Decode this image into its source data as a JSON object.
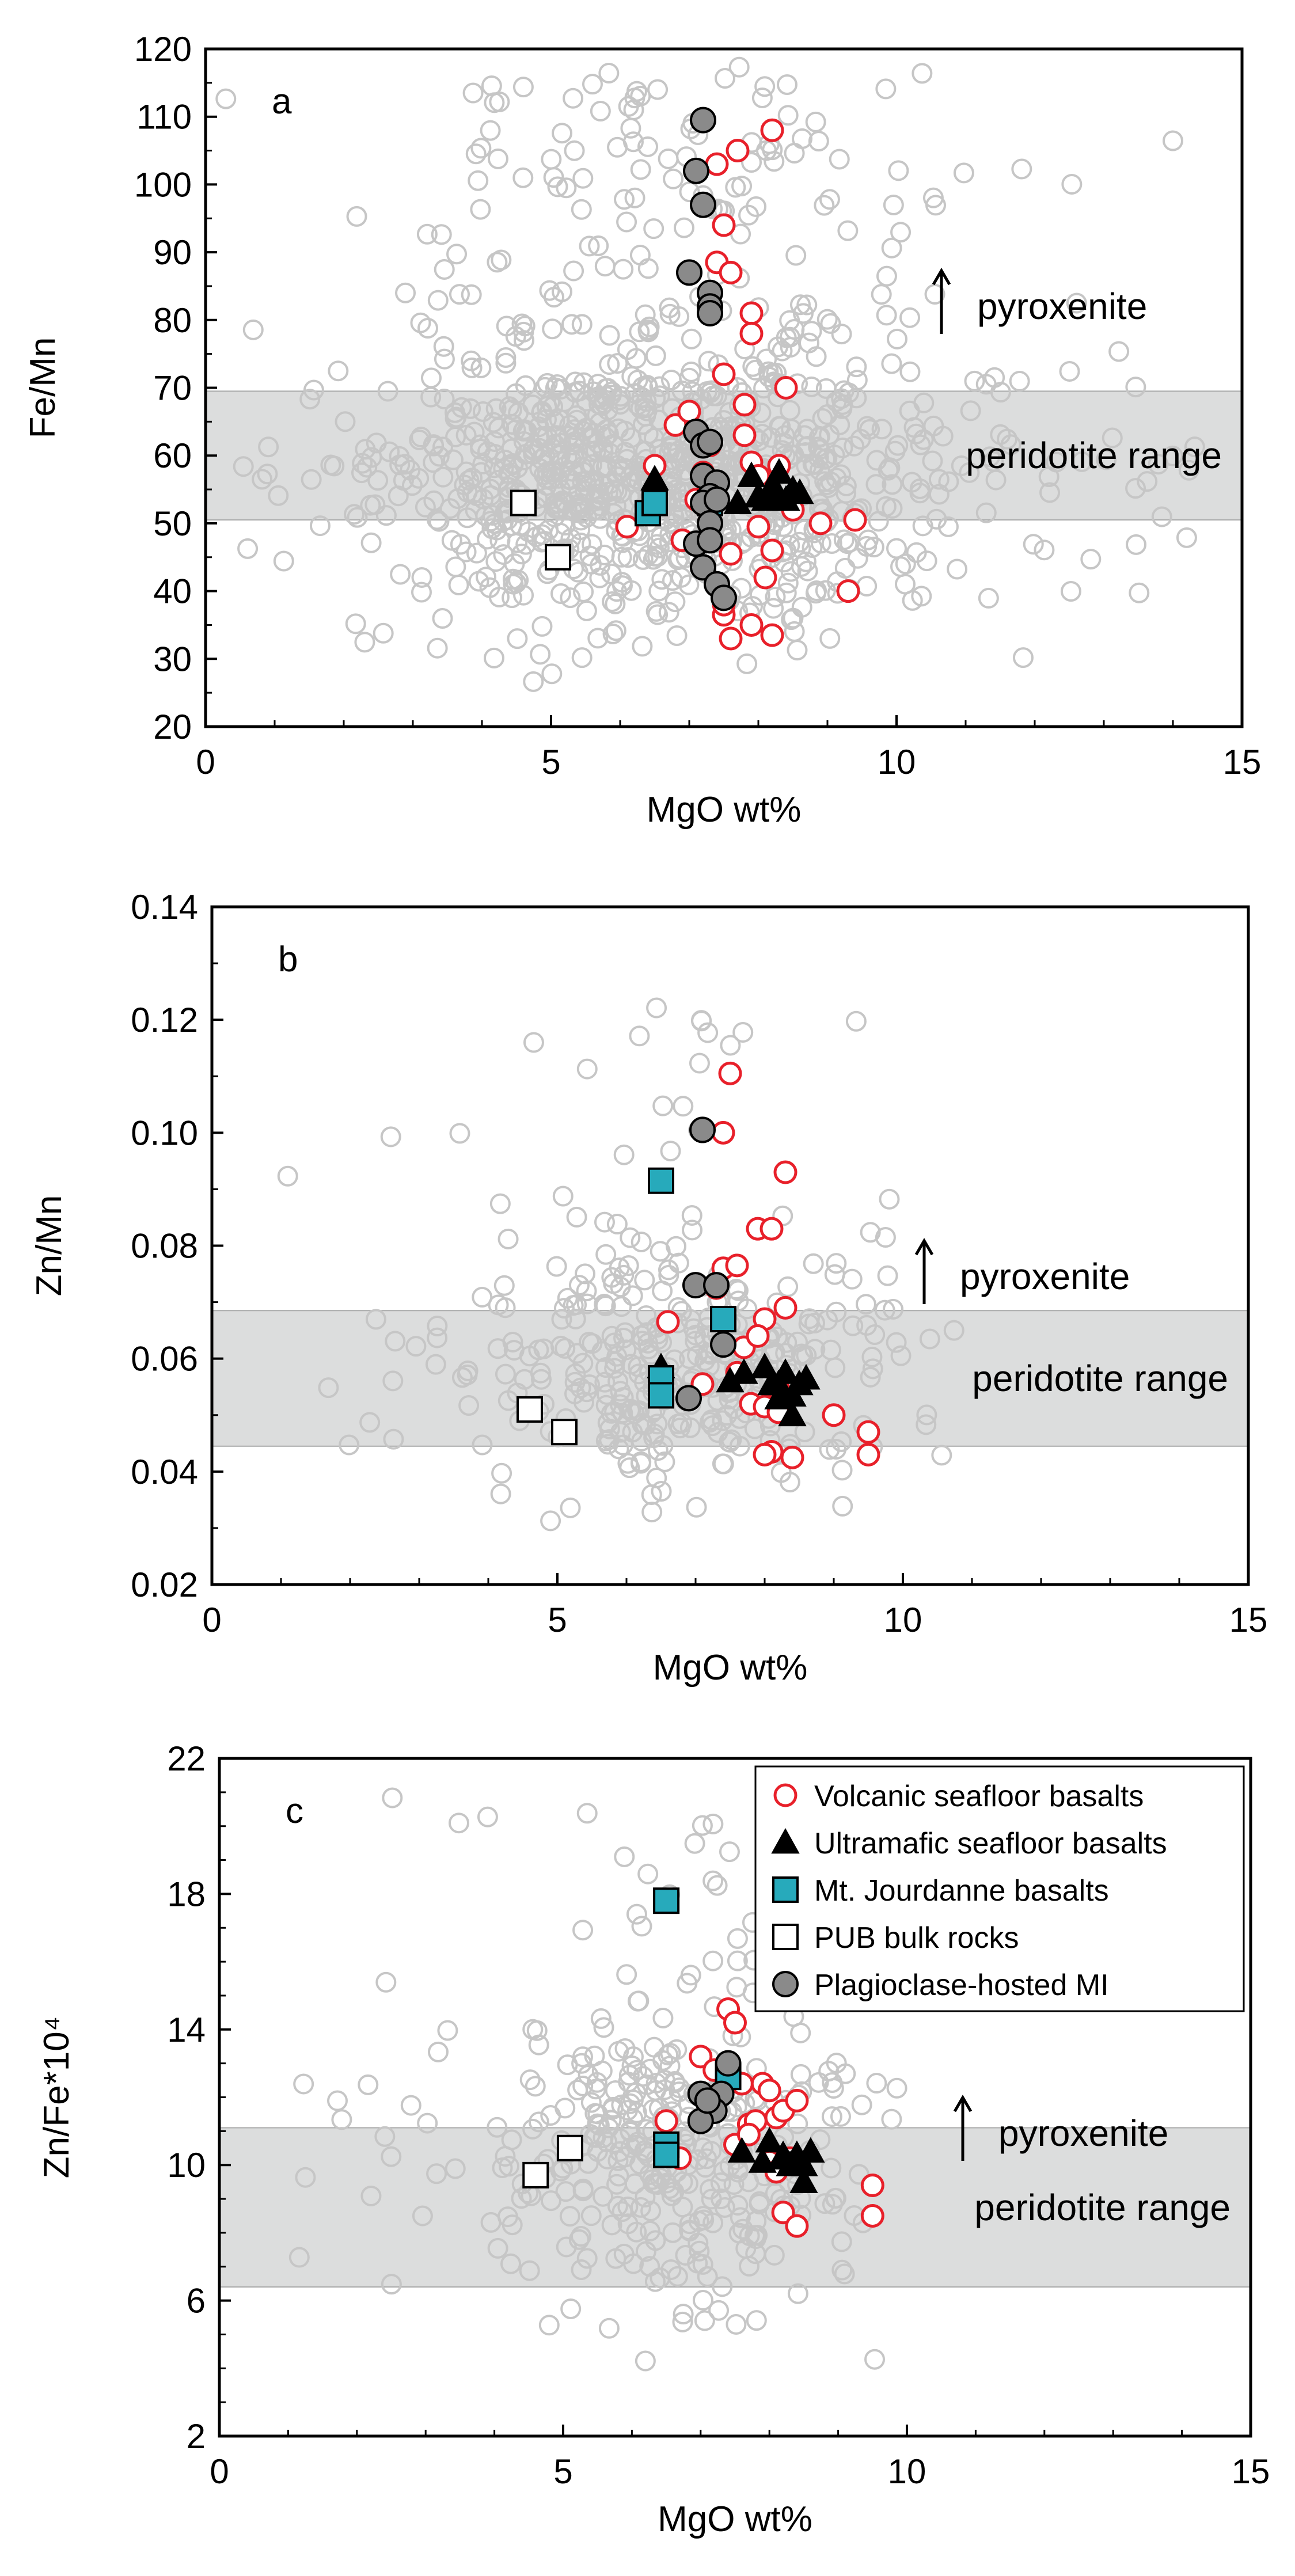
{
  "chart_data": [
    {
      "type": "scatter",
      "panel_label": "a",
      "xlabel": "MgO wt%",
      "ylabel": "Fe/Mn",
      "xlim": [
        0,
        15
      ],
      "ylim": [
        20,
        120
      ],
      "xticks": [
        0,
        5,
        10,
        15
      ],
      "yticks": [
        20,
        30,
        40,
        50,
        60,
        70,
        80,
        90,
        100,
        110,
        120
      ],
      "band": {
        "label": "peridotite range",
        "range": [
          50.5,
          69.5
        ]
      },
      "arrow_label": "pyroxenite",
      "series": [
        {
          "name": "Volcanic seafloor basalts",
          "x": [
            6.1,
            6.5,
            6.8,
            6.9,
            7.0,
            7.1,
            7.2,
            7.3,
            7.3,
            7.4,
            7.4,
            7.5,
            7.5,
            7.6,
            7.7,
            7.8,
            7.8,
            7.9,
            7.9,
            8.0,
            8.0,
            8.1,
            8.2,
            8.2,
            8.3,
            8.4,
            8.5,
            8.9,
            9.3,
            9.4,
            7.6,
            7.9,
            8.2,
            7.5,
            7.5,
            7.6,
            7.9
          ],
          "y": [
            49.5,
            58.5,
            64.5,
            47.5,
            66.5,
            53.5,
            57.5,
            53.0,
            61.5,
            88.5,
            103.0,
            94.0,
            72.0,
            87.0,
            105.0,
            67.5,
            63.0,
            81.0,
            59.0,
            57.0,
            49.5,
            42.0,
            108.0,
            46.0,
            58.5,
            70.0,
            52.0,
            50.0,
            40.0,
            50.5,
            45.5,
            35.0,
            33.5,
            36.5,
            38.0,
            33.0,
            78.0
          ]
        },
        {
          "name": "Ultramafic seafloor basalts",
          "x": [
            6.5,
            7.3,
            7.7,
            7.9,
            8.0,
            8.1,
            8.2,
            8.3,
            8.4,
            8.5,
            8.6,
            8.0,
            8.3
          ],
          "y": [
            56.5,
            53.5,
            53.0,
            57.0,
            54.0,
            53.5,
            55.5,
            57.5,
            53.5,
            55.0,
            54.5,
            54.0,
            54.0
          ]
        },
        {
          "name": "Mt. Jourdanne basalts",
          "x": [
            6.4,
            6.5,
            7.3
          ],
          "y": [
            51.5,
            53.0,
            53.0
          ]
        },
        {
          "name": "PUB bulk rocks",
          "x": [
            4.6,
            5.1
          ],
          "y": [
            53.0,
            45.0
          ]
        },
        {
          "name": "Plagioclase-hosted MI",
          "x": [
            7.2,
            7.1,
            7.2,
            7.3,
            7.3,
            7.3,
            7.0,
            7.1,
            7.2,
            7.3,
            7.2,
            7.4,
            7.3,
            7.2,
            7.4,
            7.3,
            7.1,
            7.2,
            7.3,
            7.4,
            7.5
          ],
          "y": [
            109.5,
            102.0,
            97.0,
            84.0,
            82.0,
            81.0,
            87.0,
            63.5,
            61.5,
            62.0,
            57.0,
            56.0,
            54.0,
            53.0,
            53.5,
            50.0,
            47.0,
            43.5,
            47.5,
            41.0,
            39.0
          ]
        }
      ]
    },
    {
      "type": "scatter",
      "panel_label": "b",
      "xlabel": "MgO wt%",
      "ylabel": "Zn/Mn",
      "xlim": [
        0,
        15
      ],
      "ylim": [
        0.02,
        0.14
      ],
      "xticks": [
        0,
        5,
        10,
        15
      ],
      "yticks": [
        0.02,
        0.04,
        0.06,
        0.08,
        0.1,
        0.12,
        0.14
      ],
      "band": {
        "label": "peridotite range",
        "range": [
          0.0445,
          0.0685
        ]
      },
      "arrow_label": "pyroxenite",
      "series": [
        {
          "name": "Volcanic seafloor basalts",
          "x": [
            6.6,
            7.1,
            7.3,
            7.4,
            7.4,
            7.5,
            7.6,
            7.6,
            7.7,
            7.8,
            7.9,
            8.0,
            8.0,
            8.1,
            8.1,
            8.2,
            8.3,
            8.3,
            8.4,
            9.0,
            9.5,
            9.5,
            8.0,
            8.2,
            7.9
          ],
          "y": [
            0.0665,
            0.0555,
            0.0725,
            0.076,
            0.1,
            0.1105,
            0.0765,
            0.0575,
            0.062,
            0.052,
            0.083,
            0.067,
            0.0515,
            0.0435,
            0.083,
            0.0545,
            0.093,
            0.069,
            0.0425,
            0.05,
            0.047,
            0.043,
            0.043,
            0.0505,
            0.064
          ]
        },
        {
          "name": "Ultramafic seafloor basalts",
          "x": [
            6.5,
            7.5,
            7.7,
            8.0,
            8.1,
            8.2,
            8.3,
            8.4,
            8.5,
            8.6,
            8.2,
            8.4
          ],
          "y": [
            0.0585,
            0.056,
            0.0575,
            0.0585,
            0.0555,
            0.0555,
            0.0575,
            0.0535,
            0.0555,
            0.0565,
            0.053,
            0.05
          ]
        },
        {
          "name": "Mt. Jourdanne basalts",
          "x": [
            6.5,
            6.5,
            6.5,
            7.4
          ],
          "y": [
            0.0915,
            0.0565,
            0.0535,
            0.067
          ]
        },
        {
          "name": "PUB bulk rocks",
          "x": [
            4.6,
            5.1
          ],
          "y": [
            0.051,
            0.047
          ]
        },
        {
          "name": "Plagioclase-hosted MI",
          "x": [
            7.1,
            7.0,
            7.3,
            7.4,
            6.9
          ],
          "y": [
            0.1005,
            0.073,
            0.073,
            0.0625,
            0.053
          ]
        }
      ]
    },
    {
      "type": "scatter",
      "panel_label": "c",
      "xlabel": "MgO wt%",
      "ylabel": "Zn/Fe*10⁴",
      "xlim": [
        0,
        15
      ],
      "ylim": [
        2,
        22
      ],
      "xticks": [
        0,
        5,
        10,
        15
      ],
      "yticks": [
        2,
        6,
        10,
        14,
        18,
        22
      ],
      "band": {
        "label": "peridotite range",
        "range": [
          6.4,
          11.1
        ]
      },
      "arrow_label": "pyroxenite",
      "series": [
        {
          "name": "Volcanic seafloor basalts",
          "x": [
            6.5,
            6.7,
            7.0,
            7.2,
            7.4,
            7.5,
            7.6,
            7.7,
            7.8,
            7.9,
            8.0,
            8.0,
            8.1,
            8.2,
            8.2,
            8.3,
            8.4,
            8.4,
            9.5,
            9.5,
            7.5,
            7.7,
            8.1
          ],
          "y": [
            11.3,
            10.2,
            13.2,
            12.8,
            14.6,
            14.2,
            12.4,
            11.2,
            11.3,
            12.4,
            12.2,
            10.1,
            11.4,
            11.6,
            8.6,
            10.2,
            11.9,
            8.2,
            9.4,
            8.5,
            10.6,
            10.9,
            9.8
          ]
        },
        {
          "name": "Ultramafic seafloor basalts",
          "x": [
            7.6,
            7.9,
            8.0,
            8.2,
            8.3,
            8.4,
            8.5,
            8.6,
            8.5,
            8.2,
            8.4
          ],
          "y": [
            10.4,
            10.1,
            10.7,
            10.2,
            10.0,
            10.3,
            10.0,
            10.4,
            9.5,
            10.3,
            10.2
          ]
        },
        {
          "name": "Mt. Jourdanne basalts",
          "x": [
            6.5,
            6.5,
            6.5,
            7.4
          ],
          "y": [
            17.8,
            10.6,
            10.3,
            12.6
          ]
        },
        {
          "name": "PUB bulk rocks",
          "x": [
            4.6,
            5.1
          ],
          "y": [
            9.7,
            10.5
          ]
        },
        {
          "name": "Plagioclase-hosted MI",
          "x": [
            7.4,
            7.0,
            7.3,
            7.2,
            7.0,
            7.1
          ],
          "y": [
            13.0,
            12.1,
            12.1,
            11.6,
            11.3,
            11.9
          ]
        }
      ],
      "legend": {
        "placement": "top-right",
        "entries": [
          "Volcanic seafloor basalts",
          "Ultramafic seafloor basalts",
          "Mt. Jourdanne basalts",
          "PUB bulk rocks",
          "Plagioclase-hosted MI"
        ]
      }
    }
  ],
  "colors": {
    "volcanic": "#e8202a",
    "background_points": "#c6c6c6",
    "jourdanne": "#27aabb",
    "plagioclase": "#8a8a8a",
    "band": "#dcdddd",
    "axis": "#000000"
  }
}
